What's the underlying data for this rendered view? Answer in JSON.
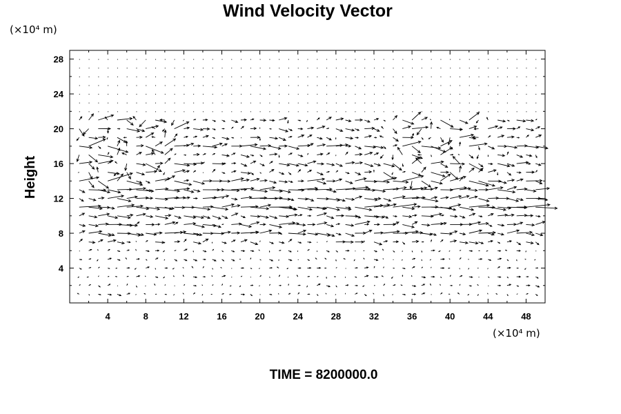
{
  "chart_data": {
    "type": "quiver",
    "title": "Wind Velocity Vector",
    "xlabel": "",
    "ylabel": "Height",
    "x_unit_label": "(×10⁴ m)",
    "y_unit_label": "(×10⁴ m)",
    "xlim": [
      0,
      50
    ],
    "ylim": [
      0,
      29
    ],
    "xticks": [
      4,
      8,
      12,
      16,
      20,
      24,
      28,
      32,
      36,
      40,
      44,
      48
    ],
    "yticks": [
      4,
      8,
      12,
      16,
      20,
      24,
      28
    ],
    "x_minor_step": 2,
    "y_minor_step": 2,
    "footer": "TIME = 8200000.0",
    "vectors_description": "gridded wind vectors (u, w); strongest flow between heights 8 and 20, near-calm above 22 and small below 6",
    "vector_grid": {
      "x_start": 0,
      "x_step": 1,
      "y_start": 0,
      "y_step": 1,
      "nx": 51,
      "ny": 29
    },
    "jet_levels": [
      {
        "height": 20.0,
        "mean_u": 0.8
      },
      {
        "height": 18.0,
        "mean_u": 1.5
      },
      {
        "height": 16.0,
        "mean_u": 1.0
      },
      {
        "height": 14.0,
        "mean_u": 1.8
      },
      {
        "height": 13.0,
        "mean_u": 2.2
      },
      {
        "height": 12.0,
        "mean_u": 1.6
      },
      {
        "height": 11.0,
        "mean_u": 2.4
      },
      {
        "height": 10.0,
        "mean_u": 1.2
      },
      {
        "height": 9.0,
        "mean_u": 1.4
      },
      {
        "height": 8.0,
        "mean_u": 1.6
      }
    ]
  }
}
